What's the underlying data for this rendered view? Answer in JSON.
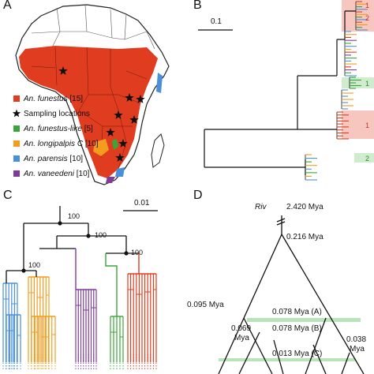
{
  "panels": {
    "a": {
      "letter": "A"
    },
    "b": {
      "letter": "B",
      "scale_label": "0.1",
      "clade_labels": [
        "1",
        "2",
        "1",
        "1",
        "2"
      ]
    },
    "c": {
      "letter": "C",
      "scale_label": "0.01",
      "bootstrap": [
        "100",
        "100",
        "100",
        "100"
      ]
    },
    "d": {
      "letter": "D",
      "outgroup": "Riv",
      "root_age": "2.420 Mya",
      "crown_age": "0.216 Mya",
      "node_095": "0.095 Mya",
      "node_078a": "0.078 Mya (A)",
      "node_078b": "0.078 Mya (B)",
      "node_069a": "0.069",
      "node_069b": "Mya",
      "node_013": "0.013 Mya (C)",
      "node_038a": "0.038",
      "node_038b": "Mya"
    }
  },
  "legend": [
    {
      "label": "An. funestus",
      "count": "[15]",
      "color": "#e03c1f",
      "marker": "square"
    },
    {
      "label": "Sampling locations",
      "count": "",
      "color": "#111111",
      "marker": "star"
    },
    {
      "label": "An. funestus-like",
      "count": "[5]",
      "color": "#3aa53a",
      "marker": "square"
    },
    {
      "label": "An. longipalpis C",
      "count": "[10]",
      "color": "#f39c1d",
      "marker": "square"
    },
    {
      "label": "An. parensis",
      "count": "[10]",
      "color": "#4a90d9",
      "marker": "square"
    },
    {
      "label": "An. vaneedeni",
      "count": "[10]",
      "color": "#7d3c98",
      "marker": "square"
    }
  ],
  "colors": {
    "funestus": "#e03c1f",
    "funestus_like": "#3aa53a",
    "longipalpis": "#f39c1d",
    "parensis": "#4a90d9",
    "vaneedeni": "#7d3c98",
    "highlight_red": "#f6c6bf",
    "highlight_green": "#cfeccf",
    "ink": "#111111"
  }
}
